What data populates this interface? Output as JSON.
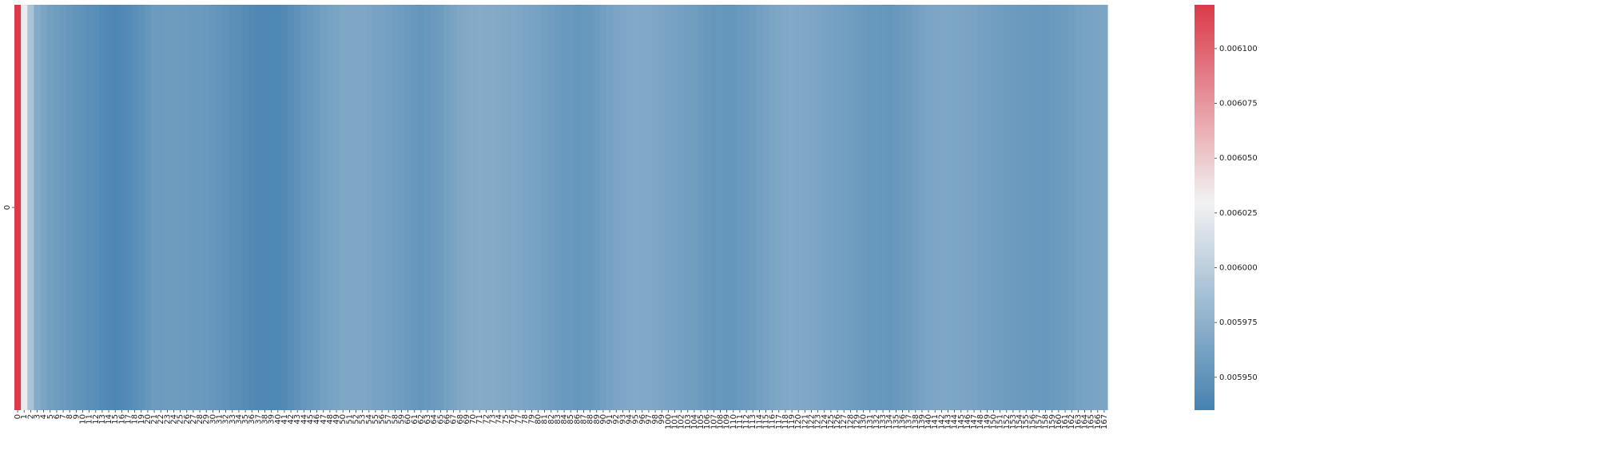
{
  "chart_data": {
    "type": "heatmap",
    "title": "",
    "xlabel": "",
    "ylabel": "",
    "row_labels": [
      "0"
    ],
    "grid": false,
    "legend": "colorbar-right",
    "colormap": {
      "low": "#4682b0",
      "mid": "#f2f2f2",
      "high": "#db3a4a",
      "vmin": 0.005935,
      "vcenter": 0.00603,
      "vmax": 0.00612
    },
    "colorbar_ticks": [
      "0.005950",
      "0.005975",
      "0.006000",
      "0.006025",
      "0.006050",
      "0.006075",
      "0.006100"
    ],
    "anchors": {
      "x": [
        0,
        1,
        2,
        3,
        5,
        8,
        12,
        15,
        18,
        21,
        24,
        28,
        31,
        34,
        37,
        40,
        42,
        44,
        47,
        50,
        53,
        56,
        59,
        62,
        65,
        68,
        71,
        74,
        77,
        80,
        83,
        86,
        89,
        92,
        95,
        98,
        101,
        104,
        107,
        110,
        113,
        116,
        119,
        122,
        125,
        128,
        131,
        134,
        137,
        140,
        143,
        146,
        149,
        152,
        155,
        158,
        161,
        164,
        167
      ],
      "y": [
        0.00612,
        0.006025,
        0.00599,
        0.00597,
        0.00596,
        0.005953,
        0.005945,
        0.005939,
        0.005945,
        0.005956,
        0.005957,
        0.005955,
        0.005951,
        0.005945,
        0.00594,
        0.005939,
        0.005945,
        0.005952,
        0.00596,
        0.005966,
        0.005966,
        0.005962,
        0.005957,
        0.005952,
        0.005957,
        0.005967,
        0.00597,
        0.005968,
        0.005966,
        0.005962,
        0.005956,
        0.005952,
        0.005956,
        0.005965,
        0.005968,
        0.005966,
        0.005962,
        0.005958,
        0.005953,
        0.005952,
        0.005957,
        0.005965,
        0.005968,
        0.005966,
        0.005962,
        0.005958,
        0.005954,
        0.005952,
        0.005957,
        0.005965,
        0.005966,
        0.005964,
        0.00596,
        0.005957,
        0.005955,
        0.005954,
        0.005957,
        0.005962,
        0.005965
      ]
    },
    "n_columns": 168
  }
}
